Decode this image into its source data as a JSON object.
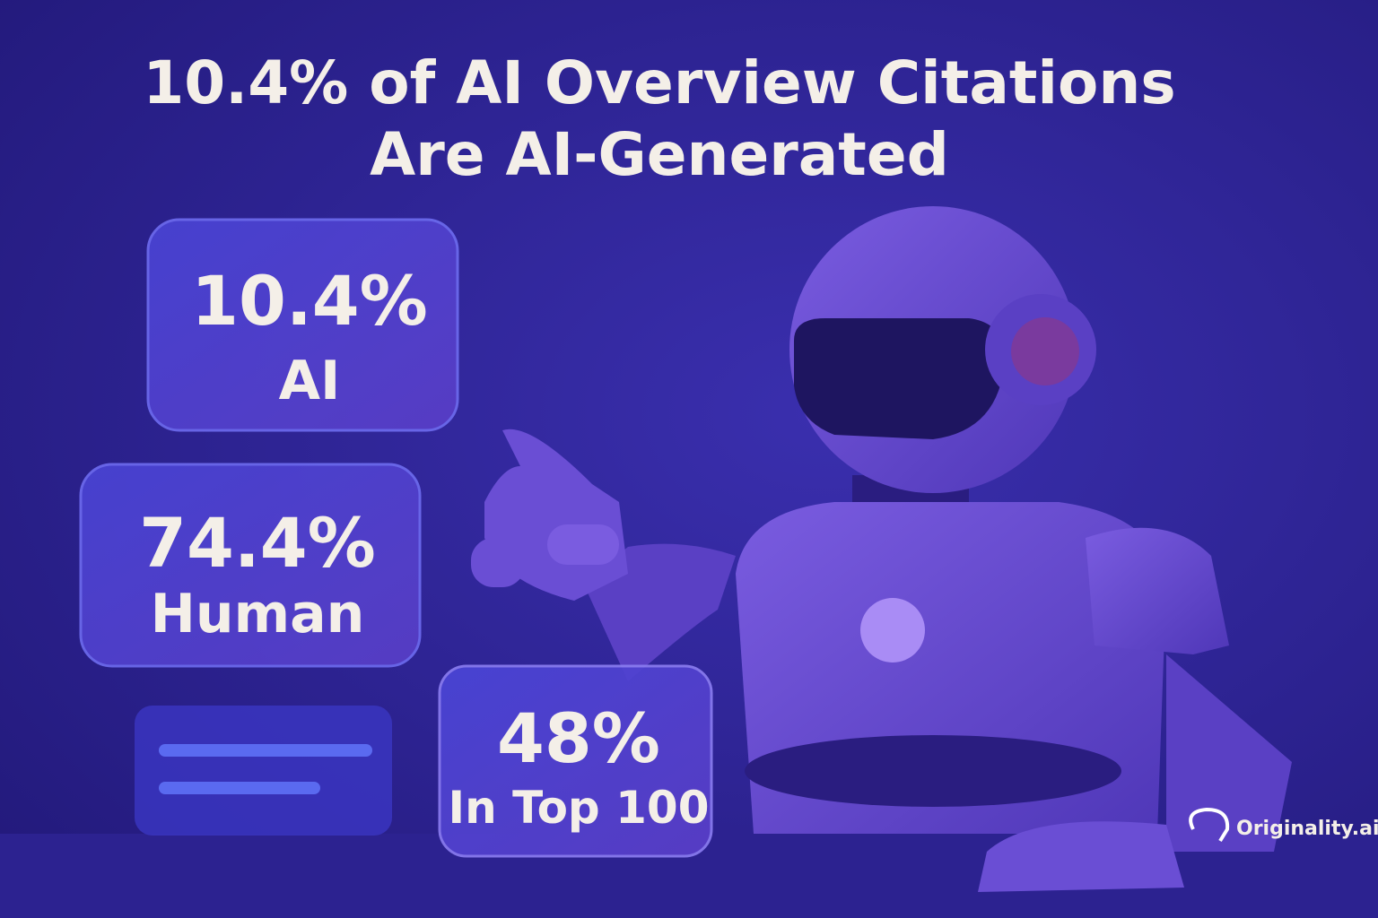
{
  "header": {
    "title_lines": [
      "10.4% of AI Overview Citations",
      "Are AI-Generated"
    ]
  },
  "cards": [
    {
      "value": "10.4%",
      "label": "AI"
    },
    {
      "value": "74.4%",
      "label": "Human"
    },
    {
      "value": "48%",
      "label": "In Top 100"
    }
  ],
  "brand": {
    "name": "Originality.ai"
  }
}
